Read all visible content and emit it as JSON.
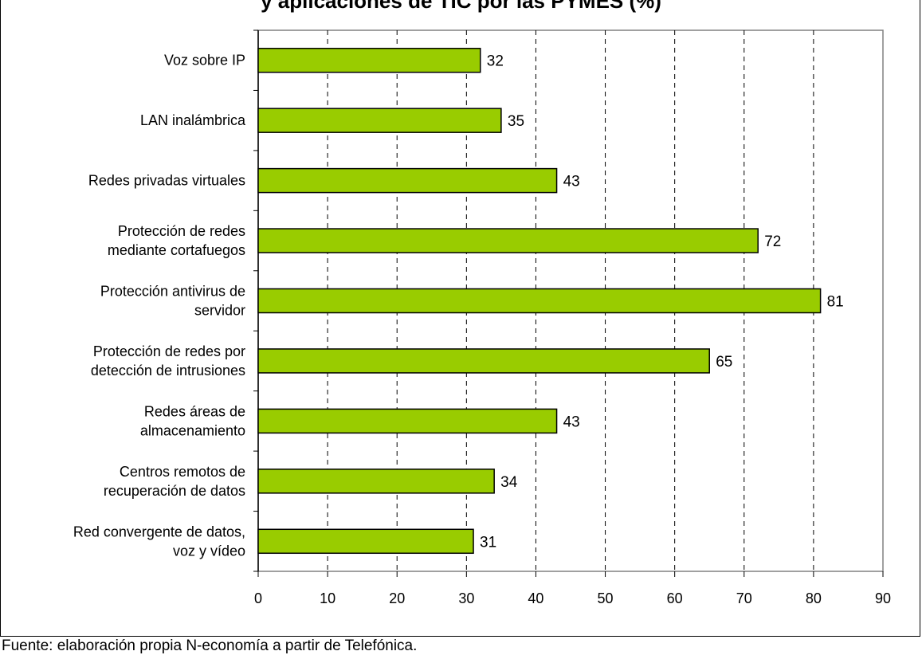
{
  "chart_data": {
    "type": "bar",
    "orientation": "horizontal",
    "title": "y aplicaciones de TIC por las PYMES (%)",
    "categories": [
      [
        "Voz sobre IP"
      ],
      [
        "LAN inalámbrica"
      ],
      [
        "Redes privadas virtuales"
      ],
      [
        "Protección de redes",
        "mediante cortafuegos"
      ],
      [
        "Protección antivirus de",
        "servidor"
      ],
      [
        "Protección de redes por",
        "detección de intrusiones"
      ],
      [
        "Redes áreas de",
        "almacenamiento"
      ],
      [
        "Centros remotos de",
        "recuperación de datos"
      ],
      [
        "Red convergente de datos,",
        "voz y vídeo"
      ]
    ],
    "values": [
      32,
      35,
      43,
      72,
      81,
      65,
      43,
      34,
      31
    ],
    "xlim": [
      0,
      90
    ],
    "xticks": [
      "0",
      "10",
      "20",
      "30",
      "40",
      "50",
      "60",
      "70",
      "80",
      "90"
    ],
    "grid": "vertical dashed",
    "bar_color": "#99cc00",
    "bar_edge_color": "#000000"
  },
  "footer": {
    "source": "Fuente: elaboración propia N-economía a partir de Telefónica."
  }
}
